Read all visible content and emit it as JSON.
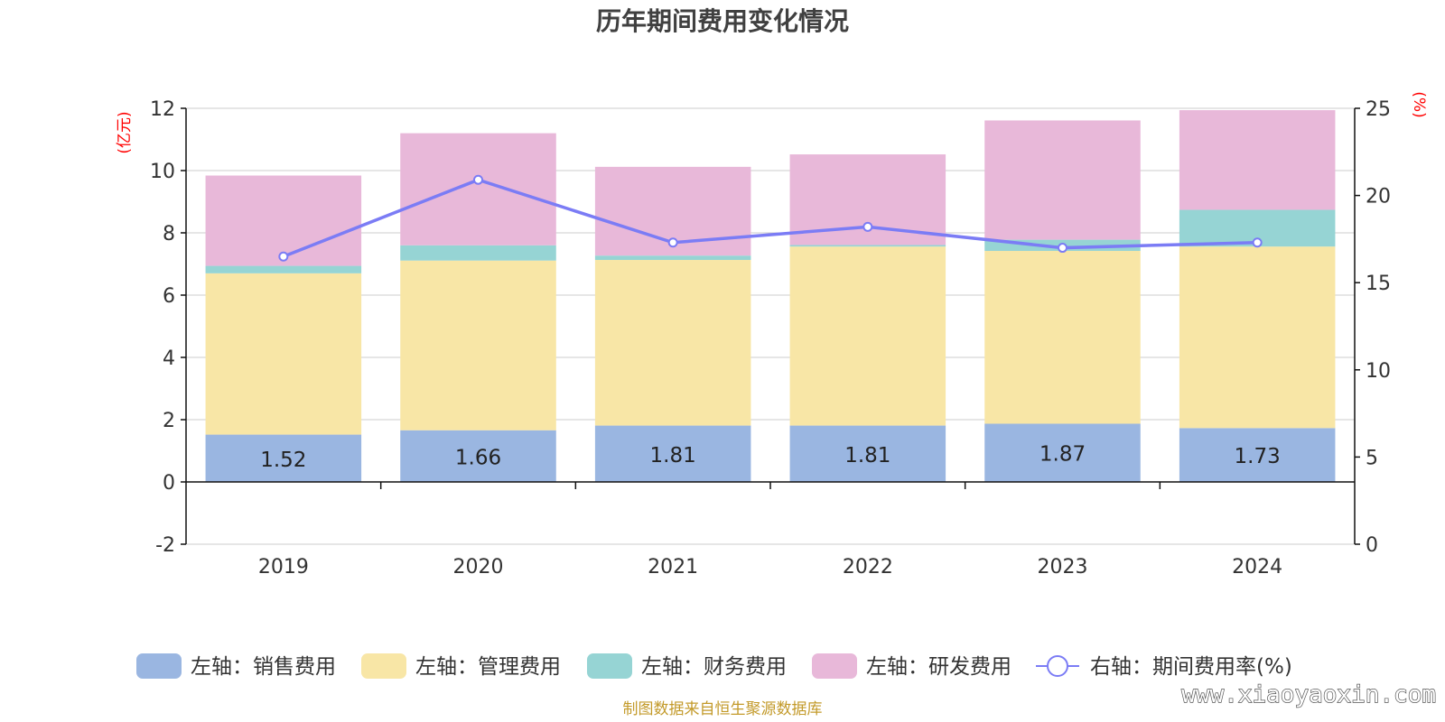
{
  "colors": {
    "sales": "#9ab6e1",
    "admin": "#f8e6a6",
    "finance": "#96d4d4",
    "rnd": "#e8b8d9",
    "rate": "#7b7cf5",
    "axis_unit": "#ff0000",
    "source": "#c39a2a"
  },
  "chart_data": {
    "type": "bar",
    "title": "历年期间费用变化情况",
    "categories": [
      "2019",
      "2020",
      "2021",
      "2022",
      "2023",
      "2024"
    ],
    "left_axis": {
      "unit": "(亿元)",
      "range": [
        -2,
        12
      ],
      "ticks": [
        "-2",
        "0",
        "2",
        "4",
        "6",
        "8",
        "10",
        "12"
      ]
    },
    "right_axis": {
      "unit": "(%)",
      "range": [
        0,
        25
      ],
      "ticks": [
        "0",
        "5",
        "10",
        "15",
        "20",
        "25"
      ]
    },
    "series": [
      {
        "key": "sales",
        "name": "左轴：销售费用",
        "values": [
          1.52,
          1.66,
          1.81,
          1.81,
          1.87,
          1.73
        ],
        "labels": [
          "1.52",
          "1.66",
          "1.81",
          "1.81",
          "1.87",
          "1.73"
        ]
      },
      {
        "key": "admin",
        "name": "左轴：管理费用",
        "values": [
          5.18,
          5.45,
          5.32,
          5.75,
          5.55,
          5.83
        ]
      },
      {
        "key": "finance",
        "name": "左轴：财务费用",
        "values": [
          0.24,
          0.49,
          0.14,
          0.05,
          0.36,
          1.18
        ]
      },
      {
        "key": "rnd",
        "name": "左轴：研发费用",
        "values": [
          2.9,
          3.6,
          2.85,
          2.91,
          3.83,
          3.2
        ]
      },
      {
        "key": "rate",
        "name": "右轴：期间费用率(%)",
        "type": "line",
        "axis": "right",
        "values": [
          16.5,
          20.9,
          17.3,
          18.2,
          17.0,
          17.3
        ]
      }
    ],
    "grid": true,
    "legend_position": "bottom"
  },
  "footer": {
    "source": "制图数据来自恒生聚源数据库",
    "watermark": "www.xiaoyaoxin.com"
  }
}
